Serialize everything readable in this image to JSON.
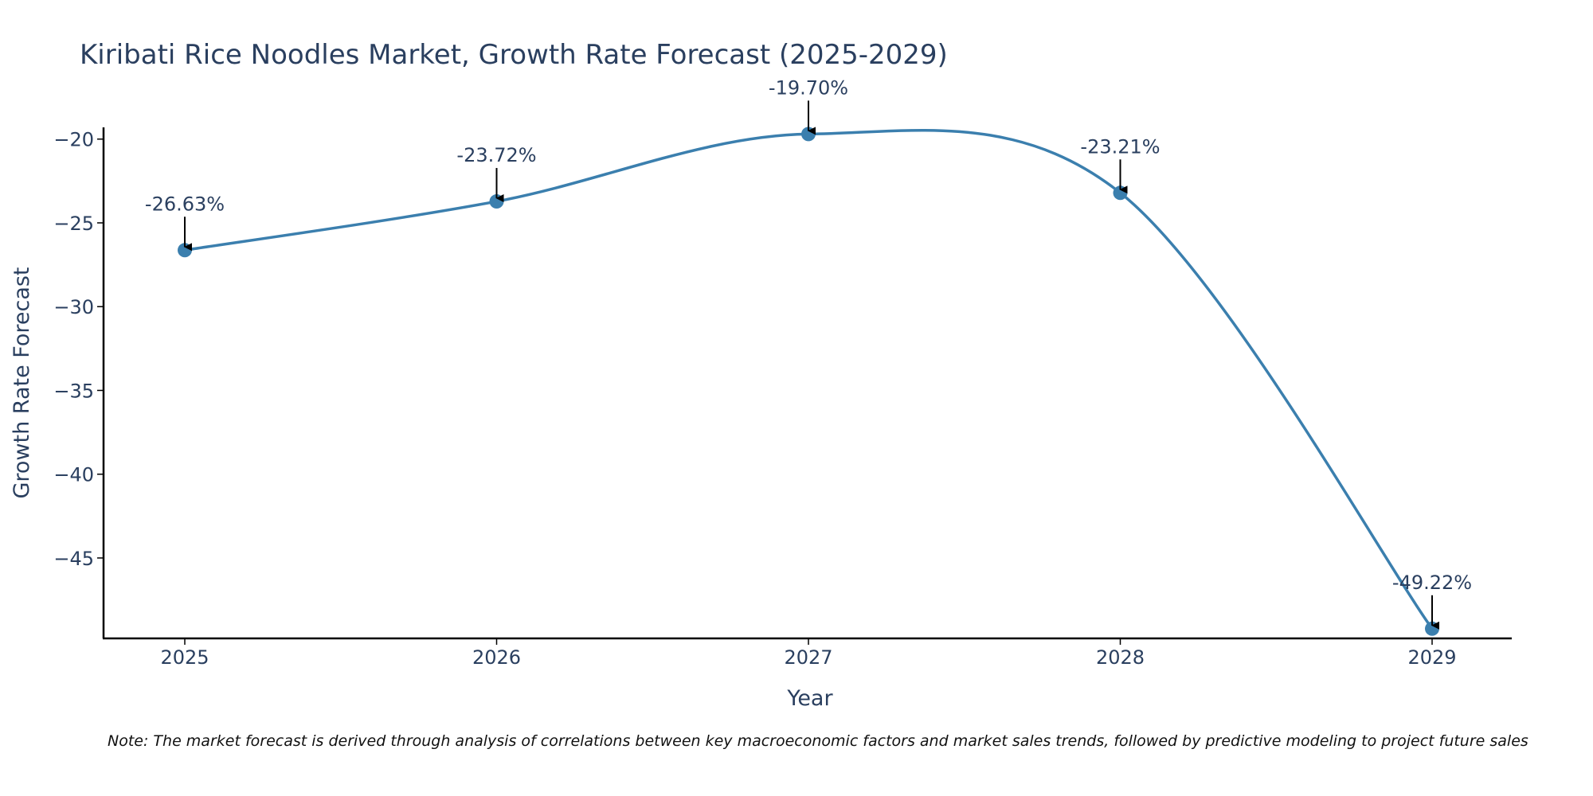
{
  "chart_data": {
    "type": "line",
    "title": "Kiribati Rice Noodles Market, Growth Rate Forecast (2025-2029)",
    "xlabel": "Year",
    "ylabel": "Growth Rate Forecast",
    "categories": [
      "2025",
      "2026",
      "2027",
      "2028",
      "2029"
    ],
    "series": [
      {
        "name": "Growth Rate Forecast",
        "values": [
          -26.63,
          -23.72,
          -19.7,
          -23.21,
          -49.22
        ],
        "labels": [
          "-26.63%",
          "-23.72%",
          "-19.70%",
          "-23.21%",
          "-49.22%"
        ]
      }
    ],
    "ylim": [
      -49.8,
      -19.3
    ],
    "y_ticks": [
      -20,
      -25,
      -30,
      -35,
      -40,
      -45
    ],
    "y_tick_labels": [
      "−20",
      "−25",
      "−30",
      "−35",
      "−40",
      "−45"
    ],
    "grid": false,
    "colors": {
      "line": "#3b7fae",
      "marker": "#3b7fae",
      "axis": "#000000",
      "text": "#2a3f5f",
      "arrow": "#000000"
    }
  },
  "note": "Note: The market forecast is derived through analysis of correlations between key macroeconomic factors and market sales trends, followed by predictive modeling to project future sales"
}
